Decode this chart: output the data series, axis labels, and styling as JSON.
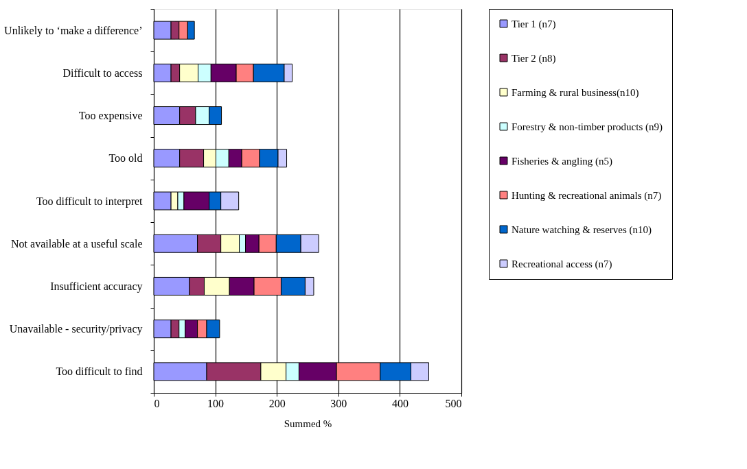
{
  "chart_data": {
    "type": "bar",
    "orientation": "horizontal",
    "stacked": true,
    "categories": [
      "Unlikely to ‘make a difference’",
      "Difficult to access",
      "Too expensive",
      "Too old",
      "Too difficult to interpret",
      "Not available at a useful scale",
      "Insufficient accuracy",
      "Unavailable - security/privacy",
      "Too difficult to find"
    ],
    "series": [
      {
        "name": "Tier 1 (n7)",
        "color": "#9999ff",
        "values": [
          28,
          28,
          42,
          42,
          28,
          71,
          58,
          28,
          86
        ]
      },
      {
        "name": "Tier 2 (n8)",
        "color": "#993366",
        "values": [
          13,
          14,
          26,
          39,
          null,
          38,
          24,
          13,
          88
        ]
      },
      {
        "name": "Farming & rural business(n10)",
        "color": "#ffffcc",
        "values": [
          null,
          30,
          null,
          20,
          11,
          30,
          41,
          null,
          41
        ]
      },
      {
        "name": "Forestry & non-timber products (n9)",
        "color": "#ccffff",
        "values": [
          null,
          21,
          22,
          21,
          10,
          10,
          null,
          10,
          21
        ]
      },
      {
        "name": "Fisheries & angling (n5)",
        "color": "#660066",
        "values": [
          null,
          41,
          null,
          21,
          41,
          22,
          40,
          20,
          61
        ]
      },
      {
        "name": "Hunting & recreational animals (n7)",
        "color": "#ff8080",
        "values": [
          14,
          28,
          null,
          29,
          null,
          28,
          44,
          15,
          71
        ]
      },
      {
        "name": "Nature watching & reserves (n10)",
        "color": "#0066cc",
        "values": [
          11,
          50,
          20,
          30,
          19,
          40,
          39,
          21,
          50
        ]
      },
      {
        "name": "Recreational access (n7)",
        "color": "#ccccff",
        "values": [
          null,
          13,
          null,
          14,
          29,
          29,
          14,
          null,
          29
        ]
      }
    ],
    "xlim": [
      0,
      500
    ],
    "xticks": [
      0,
      100,
      200,
      300,
      400,
      500
    ],
    "xlabel": "Summed %",
    "grid": "x",
    "legend": "right"
  }
}
